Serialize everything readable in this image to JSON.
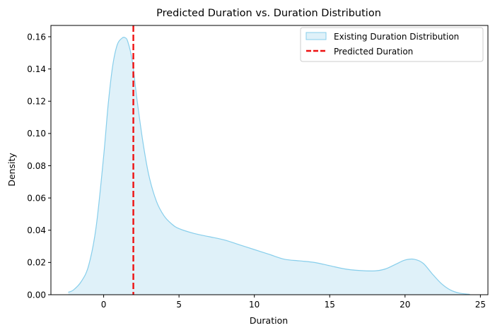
{
  "chart_data": {
    "type": "area",
    "title": "Predicted Duration vs. Duration Distribution",
    "xlabel": "Duration",
    "ylabel": "Density",
    "xlim": [
      -3.5,
      25.5
    ],
    "ylim": [
      0,
      0.167
    ],
    "xticks": [
      0,
      5,
      10,
      15,
      20,
      25
    ],
    "yticks": [
      0.0,
      0.02,
      0.04,
      0.06,
      0.08,
      0.1,
      0.12,
      0.14,
      0.16
    ],
    "grid": false,
    "legend_position": "top-right",
    "series": [
      {
        "name": "Existing Duration Distribution",
        "kind": "kde-filled",
        "line_color": "#87ceeb",
        "fill_color": "#dff1f9",
        "x": [
          -2.35,
          -2.0,
          -1.5,
          -1.0,
          -0.5,
          0.0,
          0.3,
          0.6,
          0.9,
          1.2,
          1.4,
          1.6,
          1.9,
          2.2,
          2.6,
          3.0,
          3.5,
          4.0,
          4.5,
          5.0,
          6.0,
          7.0,
          8.0,
          9.0,
          10.0,
          11.0,
          12.0,
          13.0,
          14.0,
          15.0,
          16.0,
          17.0,
          18.0,
          18.7,
          19.4,
          20.0,
          20.6,
          21.2,
          21.8,
          22.4,
          23.0,
          23.6,
          24.3
        ],
        "y": [
          0.0015,
          0.003,
          0.008,
          0.018,
          0.042,
          0.086,
          0.118,
          0.142,
          0.155,
          0.159,
          0.1595,
          0.157,
          0.145,
          0.122,
          0.095,
          0.074,
          0.058,
          0.049,
          0.044,
          0.041,
          0.038,
          0.036,
          0.034,
          0.031,
          0.028,
          0.025,
          0.022,
          0.021,
          0.02,
          0.018,
          0.016,
          0.015,
          0.0148,
          0.016,
          0.019,
          0.0215,
          0.022,
          0.0195,
          0.013,
          0.007,
          0.003,
          0.001,
          0.0002
        ]
      },
      {
        "name": "Predicted Duration",
        "kind": "vertical-line",
        "color": "#ee1111",
        "dash": "dashed",
        "x_value": 1.97
      }
    ]
  }
}
